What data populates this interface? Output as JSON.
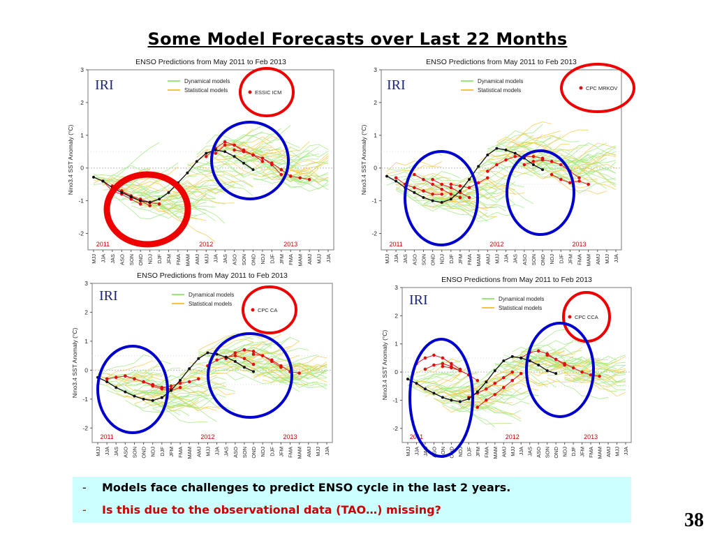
{
  "slide": {
    "title": "Some Model Forecasts over Last 22 Months",
    "bullets": [
      {
        "dash": "-",
        "text": "Models face challenges to predict ENSO cycle in the last 2 years."
      },
      {
        "dash": "-",
        "text": "Is this due to the observational data (TAO…) missing?"
      }
    ],
    "page_number": "38",
    "bullet_colors": [
      "#000000",
      "#cc0000"
    ]
  },
  "chart_data": [
    {
      "type": "line",
      "title": "ENSO Predictions from May 2011 to Feb 2013",
      "logo": "IRI",
      "ylabel": "Nino3.4 SST Anomaly (°C)",
      "ylim": [
        -2.5,
        3
      ],
      "yticks": [
        3,
        2,
        1,
        0,
        -1,
        -2
      ],
      "x_categories": [
        "MJJ",
        "JJA",
        "JAS",
        "ASO",
        "SON",
        "OND",
        "NDJ",
        "DJF",
        "JFM",
        "FMA",
        "MAM",
        "AMJ",
        "MJJ",
        "JJA",
        "JAS",
        "ASO",
        "SON",
        "OND",
        "NDJ",
        "DJF",
        "JFM",
        "FMA",
        "MAM",
        "AMJ",
        "MJJ",
        "JJA"
      ],
      "years": [
        {
          "label": "2011",
          "index": 1
        },
        {
          "label": "2012",
          "index": 12
        },
        {
          "label": "2013",
          "index": 21
        }
      ],
      "legend": {
        "dynamical": "Dynamical models",
        "statistical": "Statistical models",
        "highlight": "ESSIC ICM"
      },
      "observed": [
        -0.28,
        -0.4,
        -0.6,
        -0.75,
        -0.88,
        -1.0,
        -1.05,
        -0.95,
        -0.75,
        -0.45,
        -0.15,
        0.2,
        0.45,
        0.55,
        0.5,
        0.35,
        0.15,
        -0.05
      ],
      "highlight_forecasts": [
        {
          "start": 1,
          "values": [
            -0.4,
            -0.7,
            -0.8,
            -0.95,
            -1.1
          ]
        },
        {
          "start": 2,
          "values": [
            -0.55,
            -0.7,
            -0.9,
            -1.0,
            -1.15
          ]
        },
        {
          "start": 3,
          "values": [
            -0.7,
            -0.85,
            -0.95,
            -1.05,
            -1.1
          ]
        },
        {
          "start": 12,
          "values": [
            0.35,
            0.6,
            0.8,
            0.7,
            0.5,
            0.4
          ]
        },
        {
          "start": 13,
          "values": [
            0.45,
            0.7,
            0.7,
            0.55,
            0.4,
            0.2
          ]
        },
        {
          "start": 15,
          "values": [
            0.55,
            0.5,
            0.4,
            0.3,
            0.1,
            -0.2
          ]
        },
        {
          "start": 17,
          "values": [
            0.4,
            0.3,
            0.15,
            -0.05,
            -0.25,
            -0.3,
            -0.35
          ]
        }
      ],
      "circles": [
        {
          "color": "#ee0000",
          "role": "legend"
        },
        {
          "color": "#ee0000",
          "role": "data"
        },
        {
          "color": "#0000cc",
          "role": "data"
        }
      ]
    },
    {
      "type": "line",
      "title": "ENSO Predictions from May 2011 to Feb 2013",
      "logo": "IRI",
      "ylabel": "Nino3.4 SST Anomaly (°C)",
      "ylim": [
        -2.5,
        3
      ],
      "yticks": [
        3,
        2,
        1,
        0,
        -1,
        -2
      ],
      "x_categories": [
        "MJJ",
        "JJA",
        "JAS",
        "ASO",
        "SON",
        "OND",
        "NDJ",
        "DJF",
        "JFM",
        "FMA",
        "MAM",
        "AMJ",
        "MJJ",
        "JJA",
        "JAS",
        "ASO",
        "SON",
        "OND",
        "NDJ",
        "DJF",
        "JFM",
        "FMA",
        "MAM",
        "AMJ",
        "MJJ",
        "JJA"
      ],
      "years": [
        {
          "label": "2011",
          "index": 1
        },
        {
          "label": "2012",
          "index": 12
        },
        {
          "label": "2013",
          "index": 21
        }
      ],
      "legend": {
        "dynamical": "Dynamical models",
        "statistical": "Statistical models",
        "highlight": "CPC MRKOV"
      },
      "observed": [
        -0.25,
        -0.4,
        -0.6,
        -0.75,
        -0.9,
        -1.0,
        -1.05,
        -0.95,
        -0.7,
        -0.35,
        0.05,
        0.4,
        0.6,
        0.55,
        0.45,
        0.3,
        0.1,
        -0.05
      ],
      "highlight_forecasts": [
        {
          "start": 1,
          "values": [
            -0.3,
            -0.5,
            -0.6,
            -0.7,
            -0.8,
            -0.8
          ]
        },
        {
          "start": 3,
          "values": [
            -0.2,
            -0.35,
            -0.5,
            -0.65,
            -0.8,
            -0.9
          ]
        },
        {
          "start": 5,
          "values": [
            -0.35,
            -0.5,
            -0.6,
            -0.75,
            -0.9
          ]
        },
        {
          "start": 7,
          "values": [
            -0.5,
            -0.55,
            -0.6,
            -0.45,
            -0.3
          ]
        },
        {
          "start": 11,
          "values": [
            -0.1,
            0.1,
            0.25,
            0.35,
            0.35,
            0.35,
            0.3
          ]
        },
        {
          "start": 15,
          "values": [
            0.1,
            0.2,
            0.25,
            0.2,
            0.1,
            -0.1,
            -0.3
          ]
        },
        {
          "start": 18,
          "values": [
            -0.2,
            -0.35,
            -0.45,
            -0.4,
            -0.5
          ]
        }
      ],
      "circles": [
        {
          "color": "#ee0000",
          "role": "legend"
        },
        {
          "color": "#0000cc",
          "role": "data"
        },
        {
          "color": "#0000cc",
          "role": "data"
        }
      ]
    },
    {
      "type": "line",
      "title": "ENSO Predictions from May 2011 to Feb 2013",
      "logo": "IRI",
      "ylabel": "Nino3.4 SST Anomaly (°C)",
      "ylim": [
        -2.5,
        3
      ],
      "yticks": [
        3,
        2,
        1,
        0,
        -1,
        -2
      ],
      "x_categories": [
        "MJJ",
        "JJA",
        "JAS",
        "ASO",
        "SON",
        "OND",
        "NDJ",
        "DJF",
        "JFM",
        "FMA",
        "MAM",
        "AMJ",
        "MJJ",
        "JJA",
        "JAS",
        "ASO",
        "SON",
        "OND",
        "NDJ",
        "DJF",
        "JFM",
        "FMA",
        "MAM",
        "AMJ",
        "MJJ",
        "JJA"
      ],
      "years": [
        {
          "label": "2011",
          "index": 1
        },
        {
          "label": "2012",
          "index": 12
        },
        {
          "label": "2013",
          "index": 21
        }
      ],
      "legend": {
        "dynamical": "Dynamical models",
        "statistical": "Statistical models",
        "highlight": "CPC CA"
      },
      "observed": [
        -0.25,
        -0.4,
        -0.6,
        -0.75,
        -0.9,
        -1.0,
        -1.05,
        -0.95,
        -0.7,
        -0.35,
        0.05,
        0.4,
        0.6,
        0.55,
        0.45,
        0.3,
        0.1,
        -0.05
      ],
      "highlight_forecasts": [
        {
          "start": 1,
          "values": [
            -0.3,
            -0.25,
            -0.2,
            -0.3,
            -0.4,
            -0.5
          ]
        },
        {
          "start": 3,
          "values": [
            -0.2,
            -0.3,
            -0.4,
            -0.5,
            -0.6,
            -0.65
          ]
        },
        {
          "start": 5,
          "values": [
            -0.4,
            -0.55,
            -0.65,
            -0.7,
            -0.6
          ]
        },
        {
          "start": 7,
          "values": [
            -0.6,
            -0.55,
            -0.45,
            -0.4,
            -0.3
          ]
        },
        {
          "start": 12,
          "values": [
            0.15,
            0.35,
            0.45,
            0.5,
            0.4,
            0.2
          ]
        },
        {
          "start": 14,
          "values": [
            0.4,
            0.6,
            0.7,
            0.65,
            0.5,
            0.3,
            0.1
          ]
        },
        {
          "start": 17,
          "values": [
            0.55,
            0.5,
            0.35,
            0.15,
            -0.05,
            -0.1
          ]
        }
      ],
      "circles": [
        {
          "color": "#ee0000",
          "role": "legend"
        },
        {
          "color": "#0000cc",
          "role": "data"
        },
        {
          "color": "#0000cc",
          "role": "data"
        }
      ]
    },
    {
      "type": "line",
      "title": "ENSO Predictions from May 2011 to Feb 2013",
      "logo": "IRI",
      "ylabel": "Nino3.4 SST Anomaly (°C)",
      "ylim": [
        -2.5,
        3
      ],
      "yticks": [
        3,
        2,
        1,
        0,
        -1,
        -2
      ],
      "x_categories": [
        "MJJ",
        "JJA",
        "JAS",
        "ASO",
        "SON",
        "OND",
        "NDJ",
        "DJF",
        "JFM",
        "FMA",
        "MAM",
        "AMJ",
        "MJJ",
        "JJA",
        "JAS",
        "ASO",
        "SON",
        "OND",
        "NDJ",
        "DJF",
        "JFM",
        "FMA",
        "MAM",
        "AMJ",
        "MJJ",
        "JJA"
      ],
      "years": [
        {
          "label": "2011",
          "index": 1
        },
        {
          "label": "2012",
          "index": 12
        },
        {
          "label": "2013",
          "index": 21
        }
      ],
      "legend": {
        "dynamical": "Dynamical models",
        "statistical": "Statistical models",
        "highlight": "CPC CCA"
      },
      "observed": [
        -0.25,
        -0.4,
        -0.6,
        -0.75,
        -0.9,
        -1.0,
        -1.05,
        -0.95,
        -0.7,
        -0.35,
        0.05,
        0.4,
        0.55,
        0.5,
        0.4,
        0.25,
        0.05,
        -0.05
      ],
      "highlight_forecasts": [
        {
          "start": 1,
          "values": [
            0.3,
            0.5,
            0.6,
            0.5,
            0.3,
            0.1
          ]
        },
        {
          "start": 2,
          "values": [
            0.1,
            0.25,
            0.3,
            0.2,
            0.05,
            -0.1
          ]
        },
        {
          "start": 4,
          "values": [
            0.2,
            0.15,
            0.05,
            -0.1,
            -0.3
          ]
        },
        {
          "start": 7,
          "values": [
            -0.9,
            -0.75,
            -0.6,
            -0.4,
            -0.2,
            0.0
          ]
        },
        {
          "start": 8,
          "values": [
            -1.25,
            -1.0,
            -0.8,
            -0.55,
            -0.3,
            -0.05
          ]
        },
        {
          "start": 13,
          "values": [
            0.5,
            0.7,
            0.75,
            0.65,
            0.45,
            0.25
          ]
        },
        {
          "start": 16,
          "values": [
            0.6,
            0.45,
            0.3,
            0.15,
            0.0,
            -0.1,
            -0.15
          ]
        }
      ],
      "circles": [
        {
          "color": "#ee0000",
          "role": "legend"
        },
        {
          "color": "#0000cc",
          "role": "data"
        },
        {
          "color": "#0000cc",
          "role": "data"
        }
      ]
    }
  ]
}
